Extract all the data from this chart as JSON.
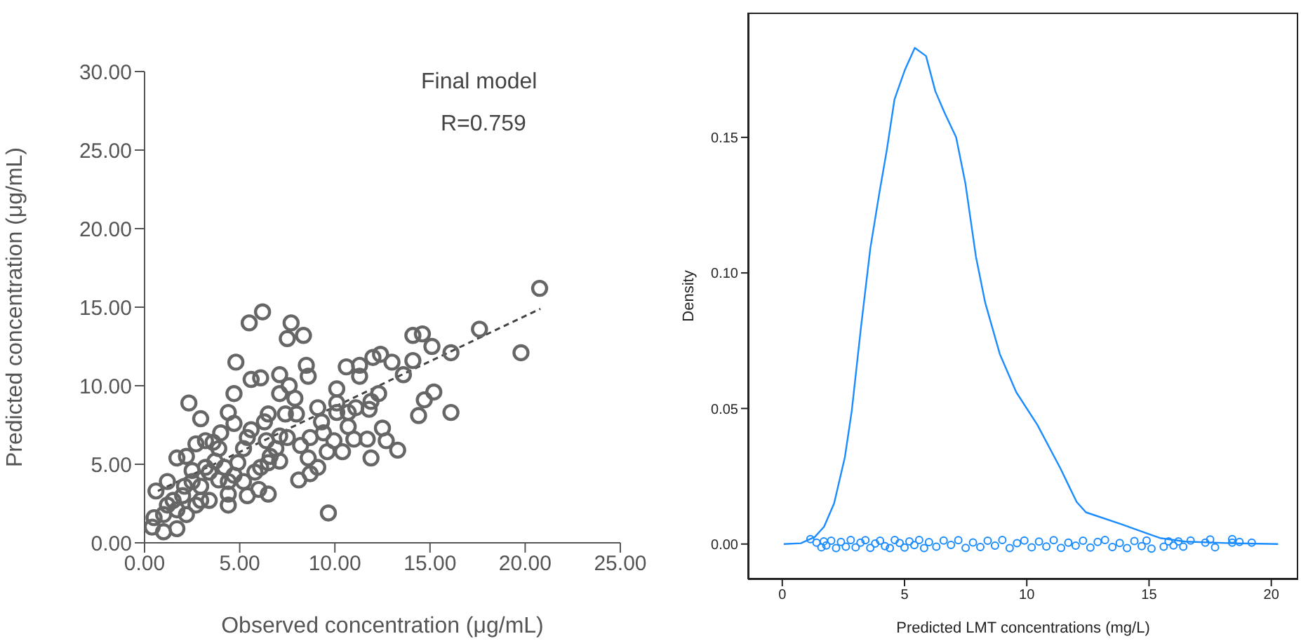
{
  "chart_data": [
    {
      "type": "scatter",
      "xlabel": "Observed concentration (μg/mL)",
      "ylabel": "Predicted concentration (μg/mL)",
      "annotations": [
        "Final model",
        "R=0.759"
      ],
      "xlim": [
        0,
        25
      ],
      "ylim": [
        0,
        30
      ],
      "xticks": [
        {
          "value": 0,
          "label": "0.00"
        },
        {
          "value": 5,
          "label": "5.00"
        },
        {
          "value": 10,
          "label": "10.00"
        },
        {
          "value": 15,
          "label": "15.00"
        },
        {
          "value": 20,
          "label": "20.00"
        },
        {
          "value": 25,
          "label": "25.00"
        }
      ],
      "yticks": [
        {
          "value": 0,
          "label": "0.00"
        },
        {
          "value": 5,
          "label": "5.00"
        },
        {
          "value": 10,
          "label": "10.00"
        },
        {
          "value": 15,
          "label": "15.00"
        },
        {
          "value": 20,
          "label": "20.00"
        },
        {
          "value": 25,
          "label": "25.00"
        },
        {
          "value": 30,
          "label": "30.00"
        }
      ],
      "grid": false,
      "legend": false,
      "marker": "circle",
      "series": [
        {
          "color": "#666666",
          "x": [
            20.76,
            19.78,
            17.6,
            16.1,
            16.1,
            14.6,
            14.1,
            15.1,
            14.1,
            14.4,
            14.7,
            15.2,
            13.6,
            13.0,
            12.4,
            12.0,
            12.3,
            11.9,
            11.8,
            12.5,
            12.7,
            13.3,
            11.9,
            11.7,
            11.0,
            10.7,
            10.7,
            10.6,
            11.3,
            10.1,
            10.1,
            9.95,
            9.6,
            9.66,
            9.3,
            9.1,
            8.7,
            8.6,
            8.7,
            8.1,
            8.5,
            8.35,
            7.7,
            7.5,
            7.1,
            7.6,
            7.1,
            7.9,
            7.4,
            6.5,
            7.5,
            6.9,
            6.3,
            6.2,
            5.5,
            5.6,
            6.1,
            4.8,
            4.7,
            4.4,
            5.6,
            6.4,
            6.5,
            5.8,
            5.4,
            6.0,
            6.5,
            4.4,
            4.4,
            4.4,
            2.95,
            2.33,
            3.2,
            2.7,
            2.2,
            1.7,
            3.9,
            4.2,
            4.9,
            5.2,
            3.4,
            2.95,
            2.7,
            2.2,
            1.7,
            1.0,
            0.5,
            0.4,
            0.6,
            1.2,
            1.5,
            2.0,
            2.5,
            1.7,
            1.0,
            3.2,
            3.7,
            3.9,
            4.7,
            5.2,
            3.4,
            2.5,
            2.95,
            1.2,
            2.1,
            6.1,
            6.6,
            7.1,
            8.2,
            9.1,
            9.4,
            10.1,
            11.1,
            10.4,
            7.1,
            5.4,
            4.7,
            4.0,
            3.6,
            7.98,
            8.6,
            11.3
          ],
          "values": [
            16.2,
            12.1,
            13.6,
            12.1,
            8.3,
            13.3,
            13.2,
            12.5,
            11.6,
            8.1,
            9.1,
            9.6,
            10.7,
            11.5,
            12.0,
            11.8,
            9.5,
            9.0,
            8.5,
            7.3,
            6.5,
            5.9,
            5.4,
            6.6,
            6.6,
            7.4,
            8.3,
            11.2,
            10.6,
            9.8,
            8.9,
            6.5,
            5.8,
            1.9,
            7.7,
            8.6,
            6.7,
            5.4,
            4.4,
            4.0,
            11.3,
            13.2,
            14.0,
            13.0,
            10.7,
            10.0,
            9.5,
            9.2,
            8.2,
            8.2,
            6.7,
            6.0,
            7.7,
            14.7,
            14.0,
            10.4,
            10.5,
            11.5,
            9.5,
            8.3,
            7.2,
            6.5,
            5.1,
            4.5,
            3.0,
            3.4,
            3.1,
            2.4,
            3.9,
            3.1,
            7.9,
            8.9,
            6.5,
            6.3,
            5.5,
            5.4,
            6.0,
            4.8,
            5.1,
            6.0,
            4.5,
            3.6,
            2.4,
            1.8,
            0.9,
            0.7,
            1.6,
            1.0,
            3.3,
            3.9,
            2.7,
            3.0,
            3.9,
            2.1,
            1.8,
            4.8,
            5.2,
            4.0,
            4.3,
            3.9,
            2.7,
            4.6,
            2.7,
            2.4,
            3.6,
            4.8,
            5.5,
            5.2,
            6.2,
            4.8,
            7.0,
            8.3,
            8.6,
            5.8,
            6.8,
            6.7,
            7.6,
            7.0,
            6.4,
            8.2,
            10.6,
            11.3
          ]
        },
        {
          "type": "line",
          "color": "#444444",
          "line_style": "dashed",
          "marker": "none",
          "x": [
            0.7,
            20.8
          ],
          "values": [
            3.3,
            14.9
          ]
        }
      ]
    },
    {
      "type": "line",
      "xlabel": "Predicted LMT concentrations (mg/L)",
      "ylabel": "Density",
      "xlim": [
        -1.4,
        21.1
      ],
      "ylim": [
        -0.013,
        0.196
      ],
      "xticks": [
        0,
        5,
        10,
        15,
        20
      ],
      "yticks": [
        {
          "value": 0,
          "label": "0.00"
        },
        {
          "value": 0.05,
          "label": "0.05"
        },
        {
          "value": 0.1,
          "label": "0.10"
        },
        {
          "value": 0.15,
          "label": "0.15"
        }
      ],
      "grid": false,
      "legend": false,
      "marker": "none",
      "series": [
        {
          "color": "#1a8cff",
          "x": [
            0.06,
            0.76,
            1.33,
            1.71,
            2.12,
            2.56,
            2.84,
            3.22,
            3.6,
            3.98,
            4.27,
            4.59,
            5.02,
            5.42,
            5.88,
            6.26,
            6.64,
            7.11,
            7.49,
            7.92,
            8.3,
            8.9,
            9.57,
            10.43,
            11.37,
            12.04,
            12.42,
            13.84,
            15.45,
            16.49,
            18.39,
            20.28
          ],
          "values": [
            0,
            0.0003,
            0.0026,
            0.0064,
            0.015,
            0.032,
            0.049,
            0.08,
            0.109,
            0.13,
            0.145,
            0.164,
            0.175,
            0.183,
            0.18,
            0.167,
            0.159,
            0.15,
            0.133,
            0.106,
            0.089,
            0.07,
            0.056,
            0.044,
            0.028,
            0.0155,
            0.0117,
            0.0074,
            0.0022,
            0.0009,
            0.0003,
            0
          ]
        },
        {
          "type": "scatter",
          "color": "#1a8cff",
          "marker": "circle",
          "x": [
            1.15,
            1.4,
            1.6,
            1.7,
            1.8,
            2.0,
            2.2,
            2.4,
            2.6,
            2.8,
            3.0,
            3.2,
            3.4,
            3.6,
            3.8,
            4.0,
            4.2,
            4.4,
            4.6,
            4.8,
            5.0,
            5.2,
            5.4,
            5.6,
            5.8,
            6.0,
            6.3,
            6.6,
            6.9,
            7.2,
            7.5,
            7.8,
            8.1,
            8.4,
            8.7,
            9.0,
            9.3,
            9.6,
            9.9,
            10.2,
            10.5,
            10.8,
            11.1,
            11.4,
            11.7,
            12.0,
            12.3,
            12.6,
            12.9,
            13.2,
            13.5,
            13.8,
            14.1,
            14.4,
            14.7,
            14.9,
            15.1,
            15.6,
            15.8,
            16.0,
            16.2,
            16.4,
            16.7,
            17.3,
            17.5,
            17.7,
            18.4,
            18.4,
            18.7,
            19.2
          ],
          "values": [
            0.0018,
            0.0005,
            -0.0012,
            0.001,
            -0.0005,
            0.0012,
            -0.0015,
            0.0008,
            -0.001,
            0.0015,
            -0.0012,
            0.0005,
            0.0014,
            -0.0014,
            0.0002,
            0.0012,
            -0.0008,
            -0.0015,
            0.0015,
            0.0004,
            -0.0013,
            0.001,
            -0.0004,
            0.0015,
            -0.0015,
            0.0007,
            -0.001,
            0.0013,
            -0.0003,
            0.0014,
            -0.0014,
            0.0006,
            -0.0011,
            0.0012,
            -0.0006,
            0.0015,
            -0.0015,
            0.0003,
            0.0013,
            -0.0012,
            0.0009,
            -0.0009,
            0.0014,
            -0.0014,
            0.0005,
            -0.0006,
            0.0012,
            -0.0013,
            0.0008,
            0.0015,
            -0.0011,
            0.0004,
            -0.0015,
            0.0011,
            -0.0008,
            0.0013,
            -0.0017,
            -0.001,
            0.001,
            -0.0005,
            0.001,
            -0.001,
            0.0013,
            0.0005,
            0.0017,
            -0.0012,
            0.0018,
            0.0005,
            0.0008,
            0.0005
          ]
        }
      ]
    }
  ]
}
